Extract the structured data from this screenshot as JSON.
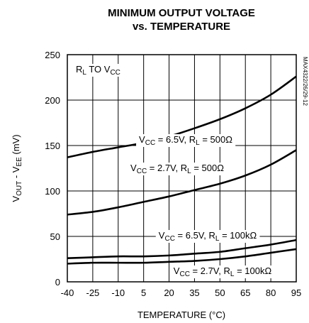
{
  "chart_data": {
    "type": "line",
    "title": "MINIMUM OUTPUT VOLTAGE",
    "subtitle": "vs. TEMPERATURE",
    "x_label": "TEMPERATURE (°C)",
    "y_label": [
      "V",
      {
        "sub": "OUT"
      },
      " - V",
      {
        "sub": "EE"
      },
      " (mV)"
    ],
    "annotation": [
      "R",
      {
        "sub": "L"
      },
      " TO V",
      {
        "sub": "CC"
      }
    ],
    "side_note": "MAX4322/26/29-12",
    "x": [
      -40,
      -25,
      -10,
      5,
      20,
      35,
      50,
      65,
      80,
      95
    ],
    "xlim": [
      -40,
      95
    ],
    "xticks": [
      -40,
      -25,
      -10,
      5,
      20,
      35,
      50,
      65,
      80,
      95
    ],
    "ylim": [
      0,
      250
    ],
    "yticks": [
      0,
      50,
      100,
      150,
      200,
      250
    ],
    "grid": true,
    "series": [
      {
        "name": [
          "V",
          {
            "sub": "CC"
          },
          " = 6.5V, R",
          {
            "sub": "L"
          },
          " = 500Ω"
        ],
        "color": "#000000",
        "values": [
          137,
          143,
          148,
          153,
          160,
          169,
          179,
          191,
          206,
          226
        ]
      },
      {
        "name": [
          "V",
          {
            "sub": "CC"
          },
          " = 2.7V, R",
          {
            "sub": "L"
          },
          " = 500Ω"
        ],
        "color": "#000000",
        "values": [
          74,
          77,
          82,
          88,
          94,
          101,
          108,
          117,
          129,
          145
        ]
      },
      {
        "name": [
          "V",
          {
            "sub": "CC"
          },
          " = 6.5V, R",
          {
            "sub": "L"
          },
          " = 100kΩ"
        ],
        "color": "#000000",
        "values": [
          26,
          27,
          28,
          28,
          29,
          31,
          33,
          37,
          41,
          46
        ]
      },
      {
        "name": [
          "V",
          {
            "sub": "CC"
          },
          " = 2.7V, R",
          {
            "sub": "L"
          },
          " = 100kΩ"
        ],
        "color": "#000000",
        "values": [
          20,
          21,
          21,
          21,
          22,
          23,
          25,
          28,
          32,
          36
        ]
      }
    ]
  }
}
